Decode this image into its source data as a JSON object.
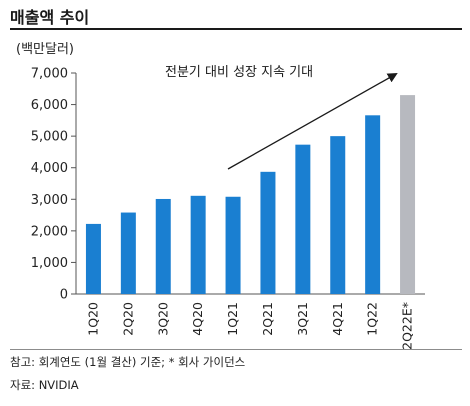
{
  "title": "매출액 추이",
  "unit_label": "(백만달러)",
  "footer": {
    "note": "참고: 회계연도 (1월 결산) 기준; * 회사 가이던스",
    "source": "자료: NVIDIA"
  },
  "colors": {
    "actual_bar": "#1a7fd1",
    "estimate_bar": "#b7b9bf",
    "axis": "#555555",
    "arrow": "#1a1a1a"
  },
  "chart_data": {
    "type": "bar",
    "title": "매출액 추이",
    "ylabel": "(백만달러)",
    "xlabel": "",
    "categories": [
      "1Q20",
      "2Q20",
      "3Q20",
      "4Q20",
      "1Q21",
      "2Q21",
      "3Q21",
      "4Q21",
      "1Q22",
      "2Q22E*"
    ],
    "values": [
      2220,
      2580,
      3010,
      3110,
      3080,
      3870,
      4730,
      5000,
      5660,
      6300
    ],
    "estimate_flags": [
      false,
      false,
      false,
      false,
      false,
      false,
      false,
      false,
      false,
      true
    ],
    "ylim": [
      0,
      7000
    ],
    "yticks": [
      "0",
      "1,000",
      "2,000",
      "3,000",
      "4,000",
      "5,000",
      "6,000",
      "7,000"
    ],
    "ytick_values": [
      0,
      1000,
      2000,
      3000,
      4000,
      5000,
      6000,
      7000
    ],
    "grid": false,
    "annotation": "전분기 대비 성장 지속 기대"
  }
}
